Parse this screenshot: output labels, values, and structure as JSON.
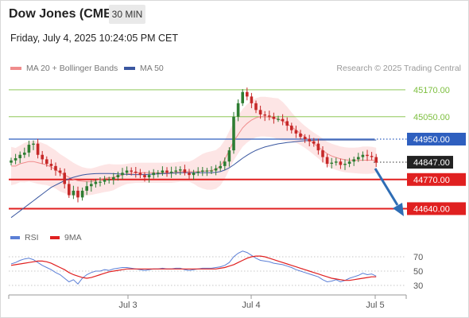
{
  "header": {
    "title": "Dow Jones (CME)",
    "timeframe": "30 MIN"
  },
  "datetime": "Friday, July 4, 2025 10:24:05 PM CET",
  "legend": {
    "ma20": "MA 20 + Bollinger Bands",
    "ma50": "MA 50"
  },
  "credit": "Research © 2025 Trading Central",
  "rsi_legend": {
    "rsi": "RSI",
    "ma": "9MA"
  },
  "colors": {
    "resistance": "#7dbf3f",
    "current_level": "#2e5fbf",
    "support": "#e02020",
    "ma20_bb": "#f08c8c",
    "ma50": "#3a57a0",
    "rsi": "#5b7fd6",
    "rsi_ma": "#e02020",
    "bullish": "#2e7d32",
    "bearish": "#c62828",
    "forecast_arrow": "#2e6db5"
  },
  "chart_data": [
    {
      "type": "candlestick",
      "title": "Dow Jones (CME)",
      "ylim": [
        44570,
        45220
      ],
      "x_ticks": [
        "Jul 3",
        "Jul 4",
        "Jul 5"
      ],
      "levels": [
        {
          "label": "45170.00",
          "value": 45170,
          "kind": "resistance"
        },
        {
          "label": "45050.00",
          "value": 45050,
          "kind": "resistance"
        },
        {
          "label": "44950.00",
          "value": 44950,
          "kind": "current-level"
        },
        {
          "label": "44847.00",
          "value": 44847,
          "kind": "last-price"
        },
        {
          "label": "44770.00",
          "value": 44770,
          "kind": "support"
        },
        {
          "label": "44640.00",
          "value": 44640,
          "kind": "support"
        }
      ],
      "close": [
        44855,
        44865,
        44880,
        44890,
        44925,
        44930,
        44880,
        44860,
        44840,
        44830,
        44810,
        44800,
        44750,
        44700,
        44720,
        44690,
        44720,
        44740,
        44750,
        44760,
        44760,
        44770,
        44770,
        44780,
        44790,
        44800,
        44810,
        44805,
        44800,
        44790,
        44780,
        44790,
        44800,
        44800,
        44810,
        44800,
        44805,
        44810,
        44815,
        44800,
        44790,
        44800,
        44805,
        44810,
        44810,
        44810,
        44820,
        44830,
        44850,
        44900,
        45050,
        45110,
        45160,
        45140,
        45110,
        45080,
        45060,
        45055,
        45050,
        45040,
        45040,
        45030,
        45010,
        44990,
        44975,
        44960,
        44950,
        44940,
        44930,
        44900,
        44870,
        44840,
        44845,
        44850,
        44835,
        44840,
        44850,
        44860,
        44870,
        44880,
        44875,
        44870,
        44845
      ],
      "ma20": [
        44830,
        44830,
        44840,
        44845,
        44850,
        44850,
        44845,
        44840,
        44835,
        44825,
        44815,
        44800,
        44790,
        44780,
        44770,
        44765,
        44762,
        44760,
        44760,
        44765,
        44770,
        44775,
        44778,
        44780,
        44785,
        44790,
        44795,
        44798,
        44800,
        44800,
        44800,
        44800,
        44800,
        44800,
        44800,
        44800,
        44800,
        44802,
        44805,
        44805,
        44805,
        44805,
        44805,
        44807,
        44808,
        44810,
        44815,
        44830,
        44860,
        44900,
        44940,
        44970,
        45000,
        45020,
        45035,
        45045,
        45050,
        45050,
        45048,
        45045,
        45040,
        45030,
        45018,
        45005,
        44990,
        44975,
        44960,
        44945,
        44930,
        44915,
        44900,
        44885,
        44875,
        44868,
        44862,
        44858,
        44856,
        44855,
        44855,
        44856,
        44856,
        44856,
        44856
      ],
      "ma50": [
        44600,
        44615,
        44630,
        44645,
        44660,
        44675,
        44690,
        44705,
        44720,
        44735,
        44745,
        44755,
        44765,
        44773,
        44780,
        44785,
        44790,
        44793,
        44795,
        44796,
        44797,
        44797,
        44797,
        44796,
        44795,
        44794,
        44793,
        44792,
        44792,
        44792,
        44792,
        44793,
        44794,
        44795,
        44796,
        44797,
        44798,
        44799,
        44800,
        44800,
        44800,
        44800,
        44800,
        44800,
        44800,
        44800,
        44802,
        44805,
        44812,
        44822,
        44835,
        44850,
        44865,
        44878,
        44890,
        44900,
        44908,
        44915,
        44920,
        44925,
        44929,
        44932,
        44935,
        44937,
        44939,
        44941,
        44943,
        44944,
        44945,
        44946,
        44946,
        44946,
        44946,
        44946,
        44946,
        44946,
        44946,
        44946,
        44946,
        44946,
        44946,
        44946,
        44946
      ]
    },
    {
      "type": "line",
      "title": "RSI",
      "ylim": [
        20,
        85
      ],
      "y_ticks": [
        70,
        50,
        30
      ],
      "series": [
        {
          "name": "RSI",
          "values": [
            60,
            62,
            65,
            67,
            68,
            66,
            62,
            58,
            55,
            52,
            48,
            45,
            40,
            35,
            38,
            32,
            40,
            45,
            48,
            50,
            50,
            52,
            51,
            53,
            54,
            55,
            55,
            54,
            53,
            52,
            51,
            52,
            53,
            53,
            54,
            53,
            53,
            54,
            54,
            52,
            51,
            52,
            53,
            54,
            54,
            54,
            55,
            56,
            58,
            62,
            70,
            75,
            78,
            76,
            72,
            68,
            65,
            64,
            63,
            61,
            60,
            59,
            57,
            55,
            52,
            50,
            48,
            46,
            44,
            42,
            38,
            35,
            36,
            38,
            35,
            37,
            40,
            42,
            44,
            47,
            45,
            46,
            43
          ]
        },
        {
          "name": "9MA",
          "values": [
            58,
            59,
            60,
            61,
            62,
            63,
            64,
            64,
            63,
            61,
            58,
            55,
            52,
            48,
            45,
            43,
            41,
            40,
            41,
            43,
            45,
            47,
            49,
            50,
            51,
            52,
            53,
            53,
            53,
            53,
            53,
            53,
            53,
            53,
            53,
            53,
            53,
            53,
            53,
            53,
            53,
            53,
            53,
            53,
            53,
            53,
            53,
            54,
            55,
            57,
            59,
            62,
            65,
            68,
            70,
            71,
            71,
            70,
            68,
            66,
            64,
            62,
            60,
            58,
            56,
            54,
            52,
            50,
            48,
            46,
            44,
            42,
            40,
            39,
            38,
            37,
            37,
            38,
            39,
            40,
            41,
            42,
            42
          ]
        }
      ]
    }
  ]
}
